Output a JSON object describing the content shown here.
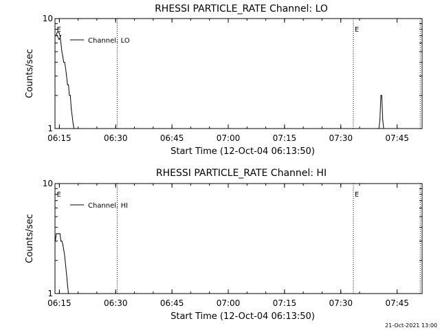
{
  "chart_data": [
    {
      "type": "line",
      "title": "RHESSI PARTICLE_RATE Channel: LO",
      "xlabel": "Start Time (12-Oct-04 06:13:50)",
      "ylabel": "Counts/sec",
      "yscale": "log",
      "ylim": [
        1,
        10
      ],
      "ytick_labels": [
        "1",
        "10"
      ],
      "xlim": [
        "06:13:50",
        "07:51:40"
      ],
      "xtick_labels": [
        "06:15",
        "06:30",
        "06:45",
        "07:00",
        "07:15",
        "07:30",
        "07:45"
      ],
      "legend": {
        "position": "top-left",
        "entries": [
          "Channel: LO"
        ]
      },
      "series": [
        {
          "name": "Channel: LO",
          "segments": [
            {
              "x": [
                "06:13:55",
                "06:14:10",
                "06:14:25",
                "06:14:40",
                "06:14:55",
                "06:15:10",
                "06:15:25",
                "06:15:40",
                "06:15:55",
                "06:16:10",
                "06:16:25",
                "06:16:40",
                "06:16:55",
                "06:17:10",
                "06:17:25",
                "06:17:40",
                "06:17:55",
                "06:18:10",
                "06:18:25",
                "06:18:40",
                "06:18:55",
                "06:19:05"
              ],
              "y": [
                7.0,
                7.0,
                7.5,
                7.5,
                7.5,
                7.0,
                6.0,
                5.0,
                4.5,
                4.0,
                4.0,
                3.5,
                3.0,
                2.5,
                2.5,
                2.0,
                2.0,
                1.5,
                1.3,
                1.1,
                1.0,
                1.0
              ]
            },
            {
              "x": [
                "07:40:10",
                "07:40:25",
                "07:40:40",
                "07:40:55",
                "07:41:10",
                "07:41:25"
              ],
              "y": [
                1.0,
                1.2,
                2.0,
                2.0,
                1.2,
                1.0
              ]
            }
          ]
        }
      ],
      "annotations": [
        {
          "label": "E",
          "x": "06:13:55",
          "line": false
        },
        {
          "label": "V",
          "x": "06:13:55",
          "line": false
        },
        {
          "label": "",
          "x": "06:30:25",
          "line": true
        },
        {
          "label": "E",
          "x": "07:33:20",
          "line": true
        },
        {
          "label": "",
          "x": "07:51:10",
          "line": true
        }
      ]
    },
    {
      "type": "line",
      "title": "RHESSI PARTICLE_RATE Channel: HI",
      "xlabel": "Start Time (12-Oct-04 06:13:50)",
      "ylabel": "Counts/sec",
      "yscale": "log",
      "ylim": [
        1,
        10
      ],
      "ytick_labels": [
        "1",
        "10"
      ],
      "xlim": [
        "06:13:50",
        "07:51:40"
      ],
      "xtick_labels": [
        "06:15",
        "06:30",
        "06:45",
        "07:00",
        "07:15",
        "07:30",
        "07:45"
      ],
      "legend": {
        "position": "top-left",
        "entries": [
          "Channel: HI"
        ]
      },
      "series": [
        {
          "name": "Channel: HI",
          "segments": [
            {
              "x": [
                "06:13:55",
                "06:14:10",
                "06:14:25",
                "06:14:40",
                "06:14:55",
                "06:15:10",
                "06:15:25",
                "06:15:40",
                "06:15:55",
                "06:16:10",
                "06:16:25",
                "06:16:40",
                "06:16:55",
                "06:17:10",
                "06:17:25"
              ],
              "y": [
                3.0,
                3.5,
                3.5,
                3.5,
                3.5,
                3.5,
                3.0,
                3.0,
                2.8,
                2.5,
                2.2,
                1.8,
                1.5,
                1.2,
                1.0
              ]
            }
          ]
        }
      ],
      "annotations": [
        {
          "label": "E",
          "x": "06:13:55",
          "line": false
        },
        {
          "label": "",
          "x": "06:30:25",
          "line": true
        },
        {
          "label": "E",
          "x": "07:33:20",
          "line": true
        },
        {
          "label": "",
          "x": "07:51:10",
          "line": true
        }
      ]
    }
  ],
  "footer": {
    "timestamp": "21-Oct-2021 13:00"
  }
}
